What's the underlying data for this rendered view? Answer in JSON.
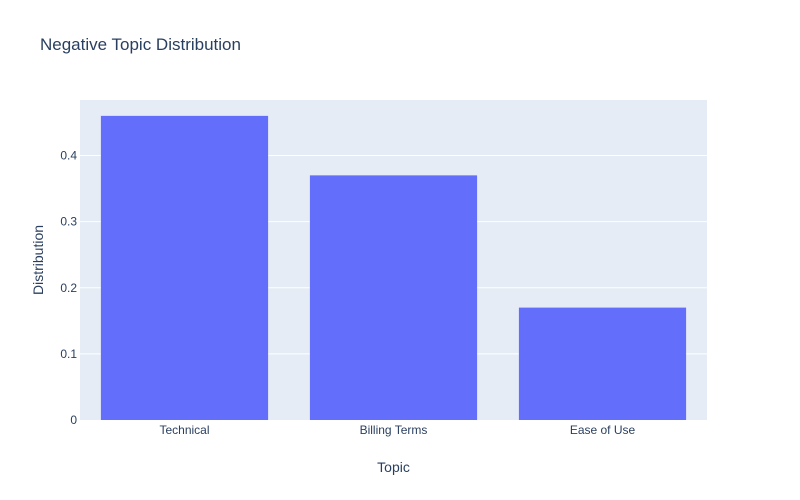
{
  "chart_data": {
    "type": "bar",
    "title": "Negative Topic Distribution",
    "xlabel": "Topic",
    "ylabel": "Distribution",
    "categories": [
      "Technical",
      "Billing Terms",
      "Ease of Use"
    ],
    "values": [
      0.46,
      0.37,
      0.17
    ],
    "ylim": [
      0,
      0.484
    ],
    "yticks": [
      0,
      0.1,
      0.2,
      0.3,
      0.4
    ],
    "ytick_labels": [
      "0",
      "0.1",
      "0.2",
      "0.3",
      "0.4"
    ],
    "grid": true,
    "legend": "none",
    "colors": {
      "bar": "#636efa",
      "plot_bg": "#e5ecf6",
      "grid": "#ffffff",
      "text": "#2a3f5f"
    }
  }
}
